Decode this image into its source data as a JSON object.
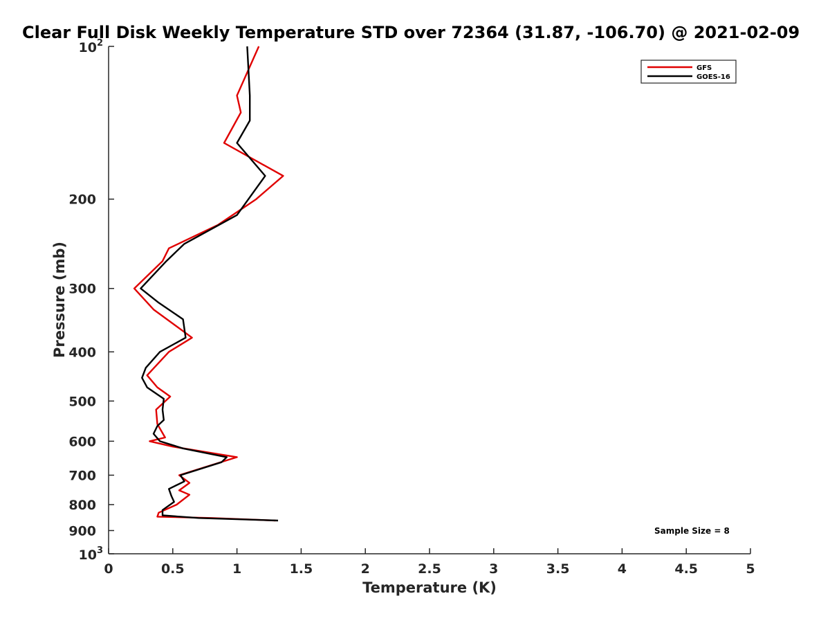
{
  "chart_data": {
    "type": "line",
    "title": "Clear Full Disk Weekly Temperature STD over 72364 (31.87, -106.70) @ 2021-02-09",
    "xlabel": "Temperature (K)",
    "ylabel": "Pressure (mb)",
    "xlim": [
      0,
      5
    ],
    "ylim": [
      100,
      1000
    ],
    "y_scale": "log",
    "y_reversed": true,
    "grid": false,
    "legend_position": "top-right",
    "x_ticks": [
      {
        "value": 0,
        "label": "0"
      },
      {
        "value": 0.5,
        "label": "0.5"
      },
      {
        "value": 1,
        "label": "1"
      },
      {
        "value": 1.5,
        "label": "1.5"
      },
      {
        "value": 2,
        "label": "2"
      },
      {
        "value": 2.5,
        "label": "2.5"
      },
      {
        "value": 3,
        "label": "3"
      },
      {
        "value": 3.5,
        "label": "3.5"
      },
      {
        "value": 4,
        "label": "4"
      },
      {
        "value": 4.5,
        "label": "4.5"
      },
      {
        "value": 5,
        "label": "5"
      }
    ],
    "y_ticks": [
      {
        "value": 100,
        "base": "10",
        "exp": "2"
      },
      {
        "value": 200,
        "base": "200",
        "exp": ""
      },
      {
        "value": 300,
        "base": "300",
        "exp": ""
      },
      {
        "value": 400,
        "base": "400",
        "exp": ""
      },
      {
        "value": 500,
        "base": "500",
        "exp": ""
      },
      {
        "value": 600,
        "base": "600",
        "exp": ""
      },
      {
        "value": 700,
        "base": "700",
        "exp": ""
      },
      {
        "value": 800,
        "base": "800",
        "exp": ""
      },
      {
        "value": 900,
        "base": "900",
        "exp": ""
      },
      {
        "value": 1000,
        "base": "10",
        "exp": "3"
      }
    ],
    "series": [
      {
        "name": "GFS",
        "color": "#e00000",
        "points": [
          [
            1.17,
            100
          ],
          [
            1.0,
            125
          ],
          [
            1.03,
            135
          ],
          [
            0.9,
            155
          ],
          [
            1.36,
            180
          ],
          [
            1.15,
            200
          ],
          [
            0.85,
            225
          ],
          [
            0.47,
            250
          ],
          [
            0.42,
            265
          ],
          [
            0.2,
            300
          ],
          [
            0.35,
            330
          ],
          [
            0.65,
            375
          ],
          [
            0.47,
            400
          ],
          [
            0.3,
            445
          ],
          [
            0.38,
            470
          ],
          [
            0.48,
            490
          ],
          [
            0.37,
            520
          ],
          [
            0.38,
            555
          ],
          [
            0.44,
            590
          ],
          [
            0.32,
            600
          ],
          [
            0.5,
            615
          ],
          [
            1.0,
            645
          ],
          [
            0.55,
            700
          ],
          [
            0.63,
            725
          ],
          [
            0.55,
            750
          ],
          [
            0.63,
            765
          ],
          [
            0.53,
            800
          ],
          [
            0.39,
            830
          ],
          [
            0.38,
            845
          ],
          [
            0.8,
            850
          ],
          [
            1.3,
            860
          ]
        ]
      },
      {
        "name": "GOES-16",
        "color": "#000000",
        "points": [
          [
            1.08,
            100
          ],
          [
            1.1,
            125
          ],
          [
            1.1,
            140
          ],
          [
            1.0,
            155
          ],
          [
            1.22,
            180
          ],
          [
            1.0,
            215
          ],
          [
            0.59,
            245
          ],
          [
            0.45,
            265
          ],
          [
            0.25,
            300
          ],
          [
            0.39,
            320
          ],
          [
            0.58,
            345
          ],
          [
            0.6,
            375
          ],
          [
            0.4,
            400
          ],
          [
            0.29,
            430
          ],
          [
            0.26,
            450
          ],
          [
            0.3,
            470
          ],
          [
            0.43,
            495
          ],
          [
            0.42,
            520
          ],
          [
            0.43,
            545
          ],
          [
            0.38,
            560
          ],
          [
            0.35,
            580
          ],
          [
            0.4,
            600
          ],
          [
            0.58,
            620
          ],
          [
            0.92,
            645
          ],
          [
            0.88,
            660
          ],
          [
            0.56,
            700
          ],
          [
            0.59,
            720
          ],
          [
            0.47,
            745
          ],
          [
            0.49,
            770
          ],
          [
            0.51,
            790
          ],
          [
            0.42,
            820
          ],
          [
            0.42,
            840
          ],
          [
            0.7,
            850
          ],
          [
            1.32,
            860
          ]
        ]
      }
    ],
    "annotations": [
      {
        "text": "Sample Size = 8",
        "position": "bottom-right"
      }
    ]
  }
}
